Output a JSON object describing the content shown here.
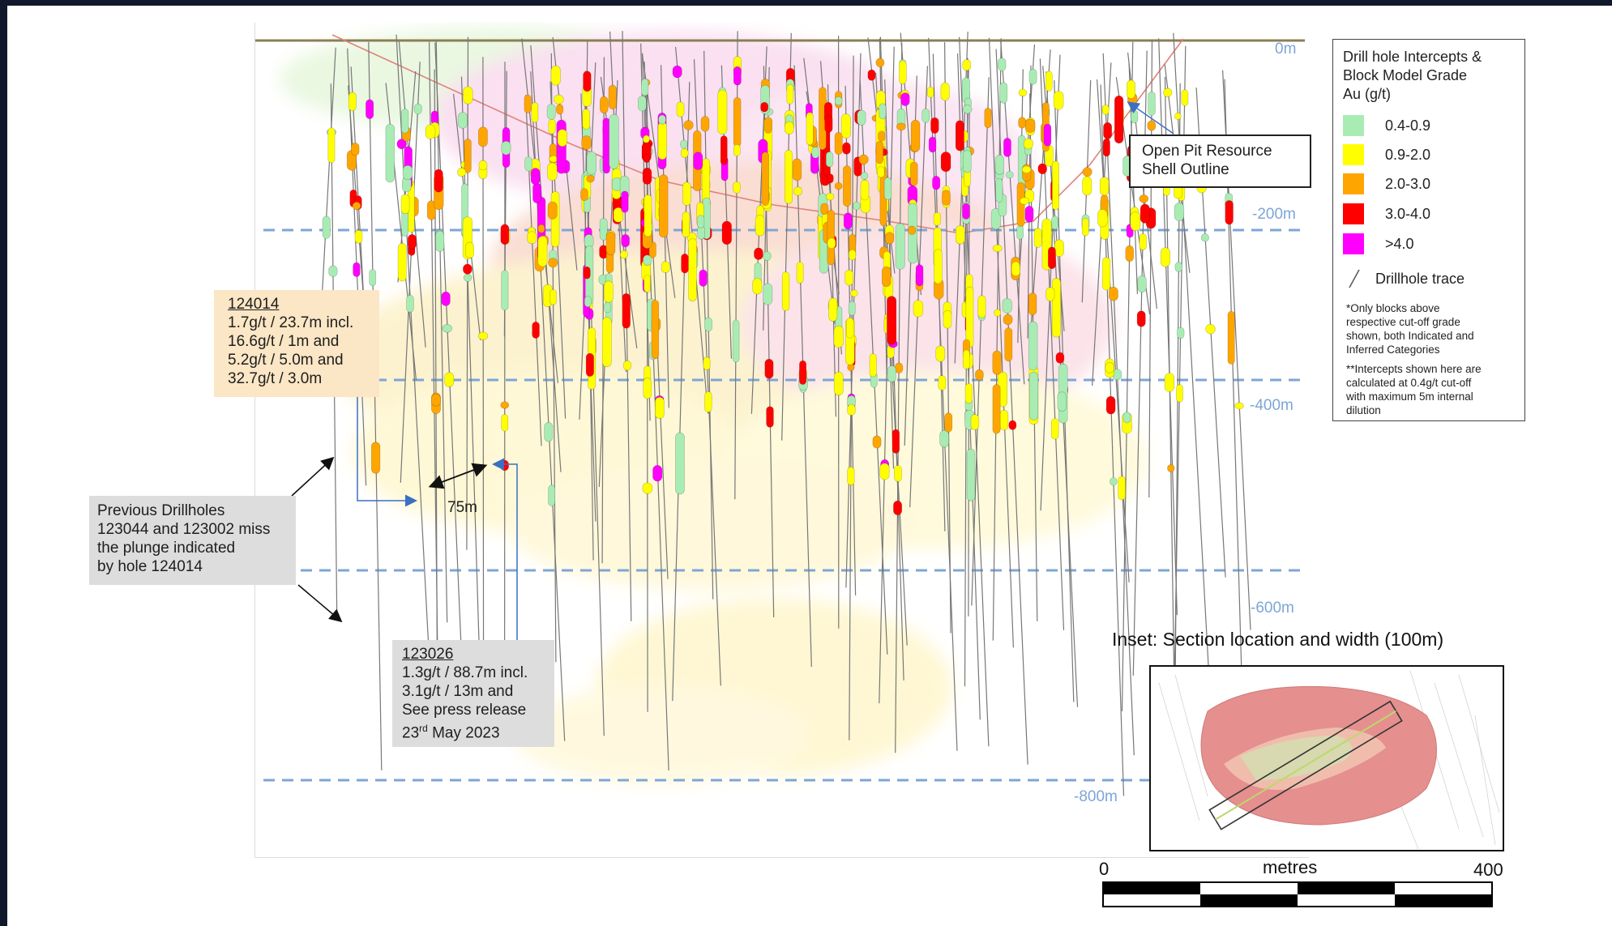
{
  "depth_labels": [
    "0m",
    "-200m",
    "-400m",
    "-600m",
    "-800m"
  ],
  "callouts": {
    "hole_124014": {
      "id": "124014",
      "lines": [
        "1.7g/t / 23.7m incl.",
        "16.6g/t / 1m and",
        "5.2g/t / 5.0m and",
        "32.7g/t / 3.0m"
      ]
    },
    "previous_drillholes": {
      "lines": [
        "Previous Drillholes",
        "123044 and 123002 miss",
        "the plunge indicated",
        "by hole 124014"
      ]
    },
    "hole_123026": {
      "id": "123026",
      "lines": [
        "1.3g/t / 88.7m incl.",
        "3.1g/t / 13m and",
        "See press release"
      ],
      "date_day": "23",
      "date_suffix": "rd",
      "date_rest": " May 2023"
    },
    "open_pit": {
      "lines": [
        "Open Pit Resource",
        "Shell Outline"
      ]
    },
    "spacing": "75m"
  },
  "legend": {
    "title_lines": [
      "Drill hole Intercepts &",
      "Block Model Grade",
      "Au (g/t)"
    ],
    "items": [
      {
        "label": "0.4-0.9",
        "color": "#a8ecb4"
      },
      {
        "label": "0.9-2.0",
        "color": "#ffff00"
      },
      {
        "label": "2.0-3.0",
        "color": "#ffa500"
      },
      {
        "label": "3.0-4.0",
        "color": "#ff0000"
      },
      {
        "label": ">4.0",
        "color": "#ff00ff"
      }
    ],
    "trace_label": "Drillhole trace",
    "note1_lines": [
      "*Only blocks above",
      "respective cut-off grade",
      "shown, both Indicated and",
      "Inferred Categories"
    ],
    "note2_lines": [
      "**Intercepts shown here are",
      "calculated at 0.4g/t cut-off",
      "with maximum 5m internal",
      "dilution"
    ]
  },
  "inset": {
    "title": "Inset: Section location and width (100m)"
  },
  "scale_bar": {
    "min": "0",
    "max": "400",
    "unit": "metres"
  },
  "colors": {
    "grid_line": "#7da6d6",
    "pit_shell": "#e0827a",
    "hole_trace": "#777777",
    "callout_tan": "#fbe6c5",
    "callout_gray": "#dddddd"
  }
}
